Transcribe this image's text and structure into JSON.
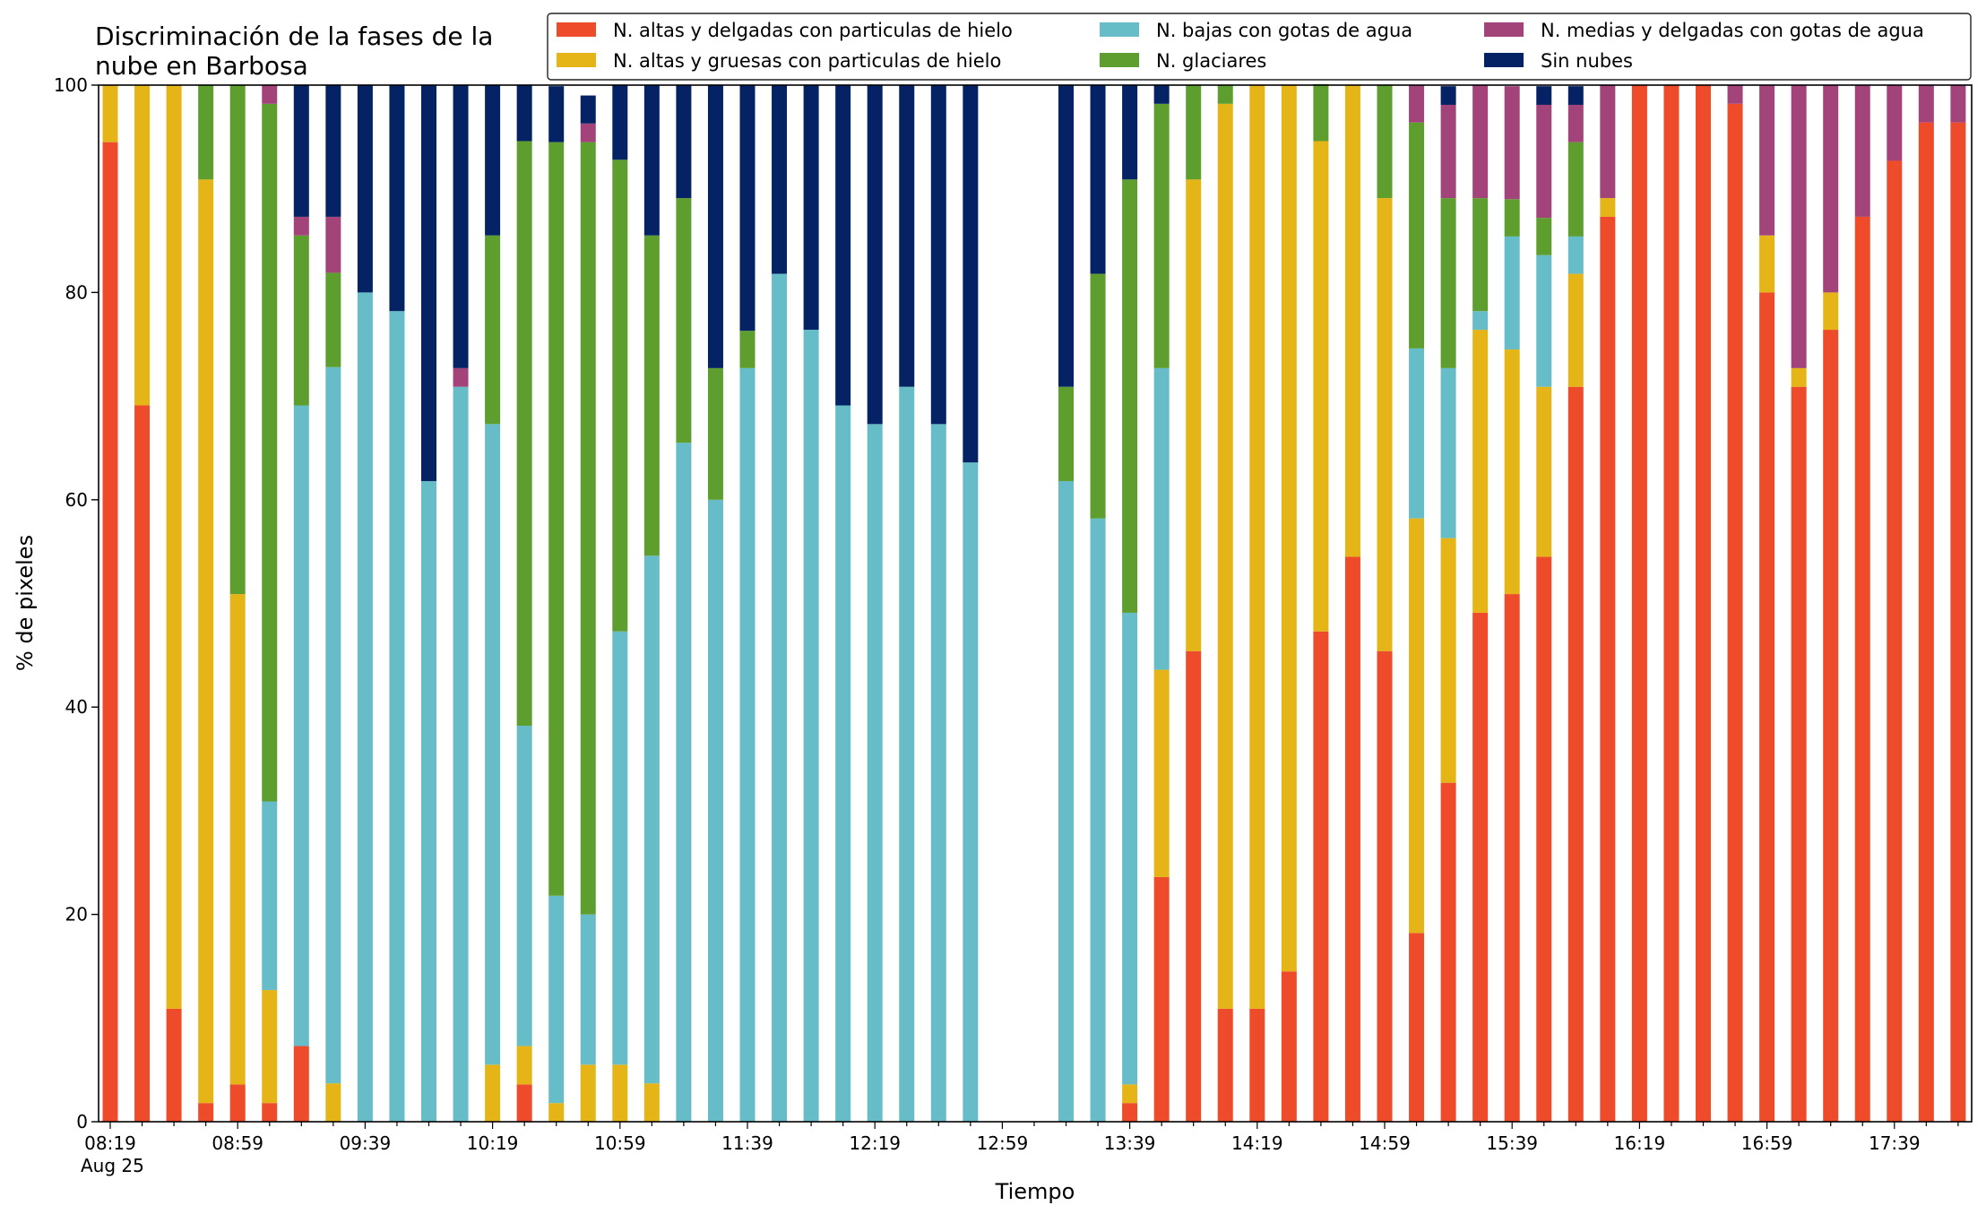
{
  "chart_data": {
    "type": "bar",
    "stacked": true,
    "title": "Discriminación de la fases de la nube en Barbosa",
    "title_lines": [
      "Discriminación de la fases de la",
      "nube en Barbosa"
    ],
    "xlabel": "Tiempo",
    "ylabel": "% de pixeles",
    "ylim": [
      0,
      100
    ],
    "yticks": [
      0,
      20,
      40,
      60,
      80,
      100
    ],
    "grid": false,
    "legend_position": "top-right",
    "x_start": "08:19",
    "x_step_minutes": 10,
    "x_tick_labels": [
      "08:19",
      "08:59",
      "09:39",
      "10:19",
      "10:59",
      "11:39",
      "12:19",
      "12:59",
      "13:39",
      "14:19",
      "14:59",
      "15:39",
      "16:19",
      "16:59",
      "17:39"
    ],
    "x_tick_sublabel": "Aug 25",
    "series": [
      {
        "name": "N. altas y delgadas con particulas de hielo",
        "color": "#ee4b2b",
        "values": [
          94.5,
          69.1,
          10.9,
          1.8,
          3.6,
          1.8,
          7.3,
          0,
          0,
          0,
          0,
          0,
          0,
          3.6,
          0,
          0,
          0,
          0,
          0,
          0,
          0,
          0,
          0,
          0,
          0,
          0,
          0,
          0,
          0,
          null,
          0,
          0,
          1.8,
          23.6,
          45.4,
          10.9,
          10.9,
          14.5,
          47.3,
          54.5,
          45.4,
          18.2,
          32.7,
          49.1,
          50.9,
          54.5,
          70.9,
          87.3,
          100,
          100,
          100,
          98.2,
          80,
          70.9,
          76.4,
          87.3,
          92.7,
          96.4,
          96.4
        ]
      },
      {
        "name": "N. altas y gruesas con particulas de hielo",
        "color": "#e5b517",
        "values": [
          5.5,
          30.9,
          89.1,
          89.1,
          47.3,
          10.9,
          0,
          3.7,
          0,
          0,
          0,
          0,
          5.5,
          3.7,
          1.8,
          5.5,
          5.5,
          3.7,
          0,
          0,
          0,
          0,
          0,
          0,
          0,
          0,
          0,
          0,
          0,
          null,
          0,
          0,
          1.8,
          20,
          45.5,
          87.3,
          89.1,
          85.5,
          47.3,
          45.5,
          43.7,
          40,
          23.6,
          27.3,
          23.6,
          16.4,
          10.9,
          1.8,
          0,
          0,
          0,
          0,
          5.5,
          1.8,
          3.6,
          0,
          0,
          0,
          0
        ]
      },
      {
        "name": "N. bajas con gotas de agua",
        "color": "#66bdc8",
        "values": [
          0,
          0,
          0,
          0,
          0,
          18.2,
          61.8,
          69.1,
          80,
          78.2,
          61.8,
          70.9,
          61.8,
          30.9,
          20,
          14.5,
          41.8,
          50.9,
          65.5,
          60,
          72.7,
          81.8,
          76.4,
          69.1,
          67.3,
          70.9,
          67.3,
          63.6,
          0,
          null,
          61.8,
          58.2,
          45.5,
          29.1,
          0,
          0,
          0,
          0,
          0,
          0,
          0,
          16.4,
          16.4,
          1.8,
          10.9,
          12.7,
          3.6,
          0,
          0,
          0,
          0,
          0,
          0,
          0,
          0,
          0,
          0,
          0,
          0
        ]
      },
      {
        "name": "N. glaciares",
        "color": "#5e9e2e",
        "values": [
          0,
          0,
          0,
          9.1,
          49.1,
          67.3,
          16.4,
          9.1,
          0,
          0,
          0,
          0,
          18.2,
          56.4,
          72.7,
          74.5,
          45.5,
          30.9,
          23.6,
          12.7,
          3.6,
          0,
          0,
          0,
          0,
          0,
          0,
          0,
          0,
          null,
          9.1,
          23.6,
          41.8,
          25.5,
          9.1,
          1.8,
          0,
          0,
          5.5,
          0,
          10.9,
          21.8,
          16.4,
          10.9,
          3.6,
          3.6,
          9.1,
          0,
          0,
          0,
          0,
          0,
          0,
          0,
          0,
          0,
          0,
          0,
          0
        ]
      },
      {
        "name": "N. medias y delgadas con gotas de agua",
        "color": "#a2447a",
        "values": [
          0,
          0,
          0,
          0,
          0,
          1.8,
          1.8,
          5.4,
          0,
          0,
          0,
          1.8,
          0,
          0,
          0,
          1.8,
          0,
          0,
          0,
          0,
          0,
          0,
          0,
          0,
          0,
          0,
          0,
          0,
          0,
          null,
          0,
          0,
          0,
          0,
          0,
          0,
          0,
          0,
          0,
          0,
          0,
          3.6,
          9.0,
          10.9,
          10.9,
          10.9,
          3.6,
          10.9,
          0,
          0,
          0,
          1.8,
          14.5,
          27.3,
          20,
          12.7,
          7.3,
          3.6,
          3.6
        ]
      },
      {
        "name": "Sin nubes",
        "color": "#042264",
        "values": [
          0,
          0,
          0,
          0,
          0,
          0,
          12.7,
          12.7,
          20,
          21.8,
          38.2,
          27.3,
          14.5,
          5.4,
          5.4,
          2.7,
          7.2,
          14.5,
          10.9,
          27.3,
          23.7,
          18.2,
          23.6,
          30.9,
          32.7,
          29.1,
          32.7,
          36.4,
          0,
          null,
          29.1,
          18.2,
          9.1,
          1.8,
          0,
          0,
          0,
          0,
          0,
          0,
          0,
          0,
          1.8,
          0,
          0,
          1.8,
          1.8,
          0,
          0,
          0,
          0,
          0,
          0,
          0,
          0,
          0,
          0,
          0,
          0
        ]
      }
    ]
  }
}
